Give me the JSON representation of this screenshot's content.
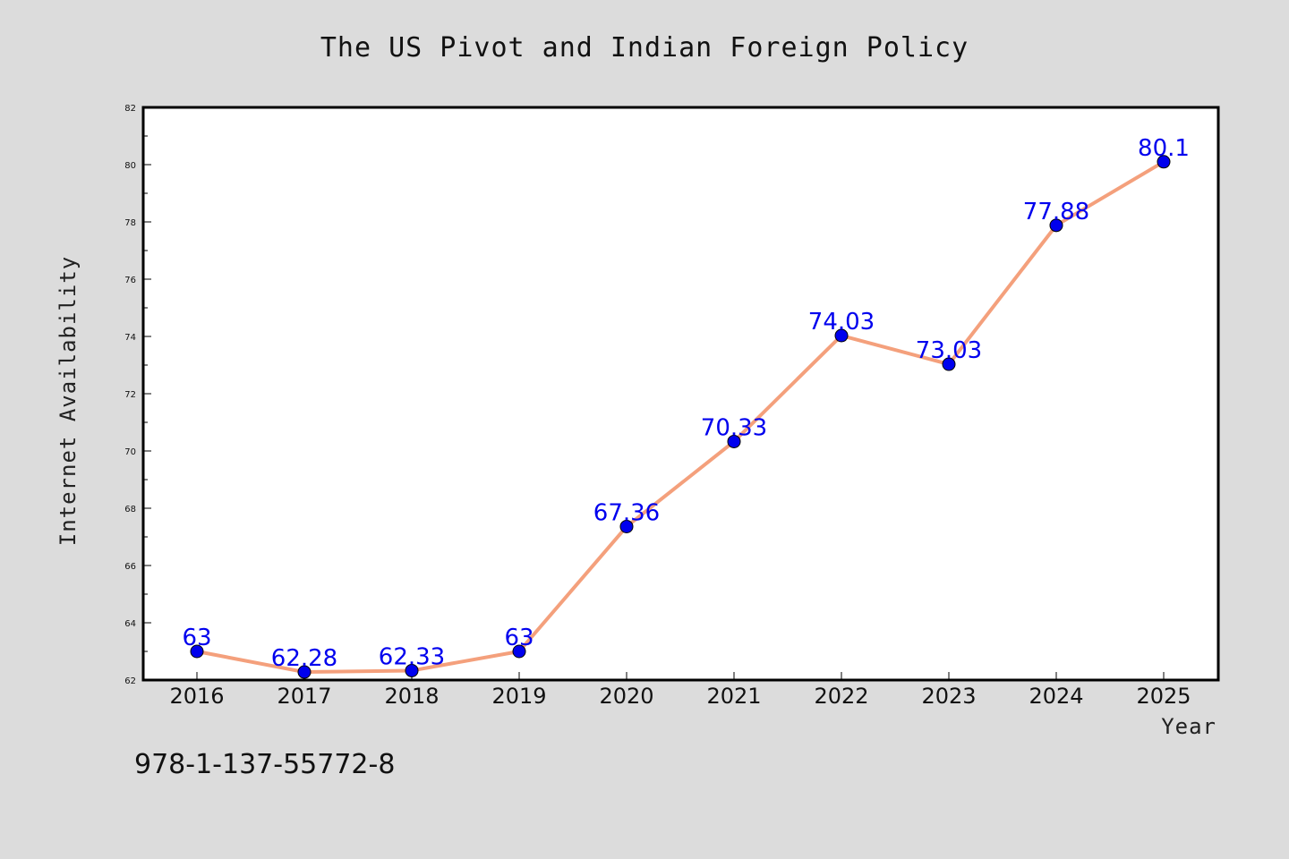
{
  "chart_data": {
    "type": "line",
    "title": "The US Pivot and Indian Foreign Policy",
    "xlabel": "Year",
    "ylabel": "Internet Availability",
    "categories": [
      "2016",
      "2017",
      "2018",
      "2019",
      "2020",
      "2021",
      "2022",
      "2023",
      "2024",
      "2025"
    ],
    "values": [
      63,
      62.28,
      62.33,
      63,
      67.36,
      70.33,
      74.03,
      73.03,
      77.88,
      80.1
    ],
    "data_labels": [
      "63",
      "62.28",
      "62.33",
      "63",
      "67.36",
      "70.33",
      "74.03",
      "73.03",
      "77.88",
      "80.1"
    ],
    "ylim": [
      62,
      82
    ],
    "yticks": [
      "62",
      "64",
      "66",
      "68",
      "70",
      "72",
      "74",
      "76",
      "78",
      "80",
      "82"
    ],
    "line_color": "#f4a07c",
    "marker_color": "#0000ee",
    "grid": false,
    "legend": "none"
  },
  "footer": {
    "isbn": "978-1-137-55772-8"
  },
  "colors": {
    "background": "#dcdcdc",
    "plot_background": "#ffffff"
  }
}
